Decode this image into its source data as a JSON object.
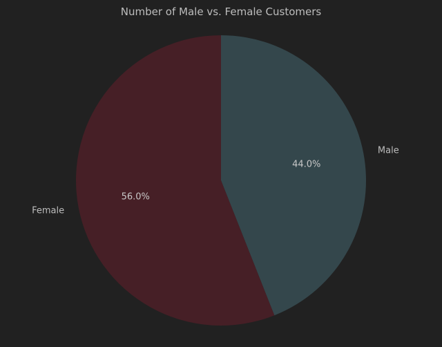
{
  "chart_data": {
    "type": "pie",
    "title": "Number of Male vs. Female Customers",
    "slices": [
      {
        "label": "Male",
        "value": 44.0,
        "pct_label": "44.0%",
        "color": "#34474c"
      },
      {
        "label": "Female",
        "value": 56.0,
        "pct_label": "56.0%",
        "color": "#461f26"
      }
    ],
    "start_angle_deg": 90,
    "direction": "clockwise",
    "legend": "none"
  },
  "colors": {
    "background": "#212121",
    "text": "#bdbdbd"
  }
}
